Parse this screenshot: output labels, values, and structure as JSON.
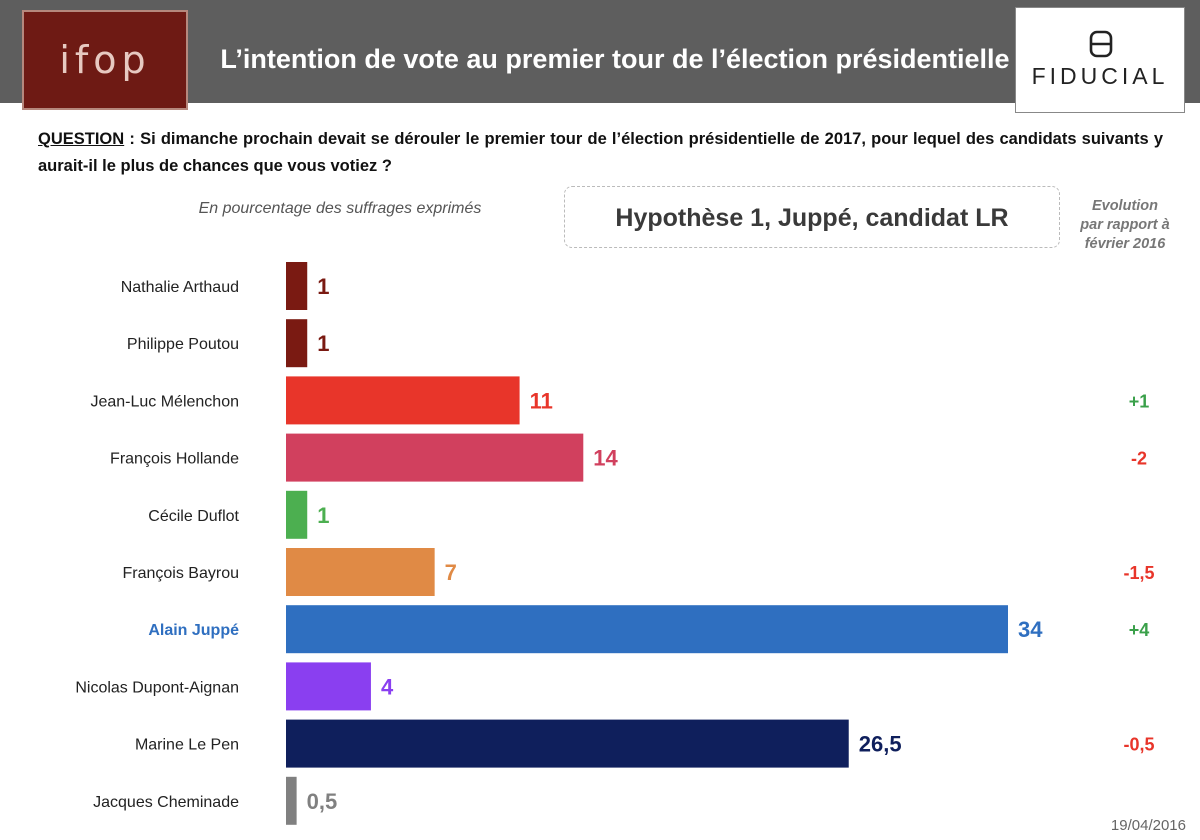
{
  "header": {
    "logo_left": "ifop",
    "title": "L’intention de vote au premier tour de l’élection présidentielle",
    "logo_right": "FIDUCIAL"
  },
  "question": {
    "label": "QUESTION",
    "text": " : Si dimanche prochain devait se dérouler le premier tour de l’élection présidentielle de 2017, pour lequel des candidats suivants y aurait-il le plus de chances que vous votiez ?"
  },
  "subtitle": "En pourcentage des suffrages exprimés",
  "hypothesis": "Hypothèse 1, Juppé, candidat LR",
  "evolution_header": "Evolution par rapport à février 2016",
  "date": "19/04/2016",
  "colors": {
    "header_bg": "#5e5e5e",
    "ifop_bg": "#6e1a14",
    "positive": "#3aa04a",
    "negative": "#e8352a"
  },
  "chart_data": {
    "type": "bar",
    "orientation": "horizontal",
    "categories": [
      "Nathalie Arthaud",
      "Philippe Poutou",
      "Jean-Luc Mélenchon",
      "François Hollande",
      "Cécile Duflot",
      "François Bayrou",
      "Alain Juppé",
      "Nicolas Dupont-Aignan",
      "Marine Le Pen",
      "Jacques Cheminade"
    ],
    "values": [
      1,
      1,
      11,
      14,
      1,
      7,
      34,
      4,
      26.5,
      0.5
    ],
    "value_labels": [
      "1",
      "1",
      "11",
      "14",
      "1",
      "7",
      "34",
      "4",
      "26,5",
      "0,5"
    ],
    "colors": [
      "#7a1a12",
      "#7a1a12",
      "#e8352a",
      "#d1405e",
      "#4caf50",
      "#e08a45",
      "#2f6fc0",
      "#8a3ff0",
      "#0f1f5c",
      "#808080"
    ],
    "highlight_label_color": [
      "",
      "",
      "",
      "",
      "",
      "",
      "#2f6fc0",
      "",
      "",
      ""
    ],
    "evolution": [
      "",
      "",
      "+1",
      "-2",
      "",
      "-1,5",
      "+4",
      "",
      "-0,5",
      ""
    ],
    "evolution_sign": [
      0,
      0,
      1,
      -1,
      0,
      -1,
      1,
      0,
      -1,
      0
    ],
    "xlim": [
      0,
      34
    ]
  }
}
